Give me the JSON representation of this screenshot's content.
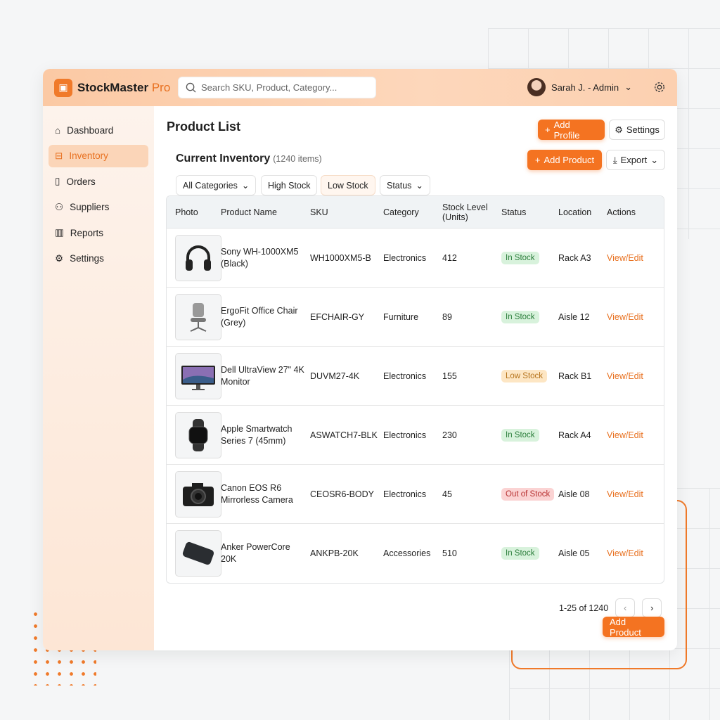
{
  "app": {
    "brand": "StockMaster",
    "brand_suffix": "Pro",
    "search_placeholder": "Search SKU, Product, Category...",
    "user": "Sarah J. - Admin"
  },
  "colors": {
    "accent": "#f47321",
    "in_stock": "#d8f2dc",
    "low_stock": "#fde6c4",
    "out_of_stock": "#fbd3d3"
  },
  "sidebar": {
    "items": [
      {
        "label": "Dashboard",
        "icon": "home-icon"
      },
      {
        "label": "Inventory",
        "icon": "briefcase-icon",
        "active": true
      },
      {
        "label": "Orders",
        "icon": "document-icon"
      },
      {
        "label": "Suppliers",
        "icon": "users-icon"
      },
      {
        "label": "Reports",
        "icon": "chart-icon"
      },
      {
        "label": "Settings",
        "icon": "gear-icon"
      }
    ]
  },
  "main": {
    "title": "Product List",
    "add_profile": "Add Profile",
    "settings": "Settings",
    "section_title": "Current Inventory",
    "item_count": "(1240 items)",
    "add_product": "Add Product",
    "export": "Export",
    "filters": [
      "All Categories",
      "High Stock",
      "Low Stock",
      "Status"
    ],
    "columns": [
      "Photo",
      "Product Name",
      "SKU",
      "Category",
      "Stock Level (Units)",
      "Status",
      "Location",
      "Actions"
    ],
    "rows": [
      {
        "name": "Sony WH-1000XM5 (Black)",
        "sku": "WH1000XM5-B",
        "category": "Electronics",
        "stock": "412",
        "status": "In Stock",
        "location": "Rack A3",
        "action": "View/Edit",
        "photo": "headphones"
      },
      {
        "name": "ErgoFit Office Chair (Grey)",
        "sku": "EFCHAIR-GY",
        "category": "Furniture",
        "stock": "89",
        "status": "In Stock",
        "location": "Aisle 12",
        "action": "View/Edit",
        "photo": "chair"
      },
      {
        "name": "Dell UltraView 27\" 4K Monitor",
        "sku": "DUVM27-4K",
        "category": "Electronics",
        "stock": "155",
        "status": "Low Stock",
        "location": "Rack B1",
        "action": "View/Edit",
        "photo": "monitor"
      },
      {
        "name": "Apple Smartwatch Series 7 (45mm)",
        "sku": "ASWATCH7-BLK",
        "category": "Electronics",
        "stock": "230",
        "status": "In Stock",
        "location": "Rack A4",
        "action": "View/Edit",
        "photo": "watch"
      },
      {
        "name": "Canon EOS R6 Mirrorless Camera",
        "sku": "CEOSR6-BODY",
        "category": "Electronics",
        "stock": "45",
        "status": "Out of Stock",
        "location": "Aisle 08",
        "action": "View/Edit",
        "photo": "camera"
      },
      {
        "name": "Anker PowerCore 20K",
        "sku": "ANKPB-20K",
        "category": "Accessories",
        "stock": "510",
        "status": "In Stock",
        "location": "Aisle 05",
        "action": "View/Edit",
        "photo": "powerbank"
      }
    ],
    "pagination": "1-25 of 1240",
    "add_product_bottom": "Add Product"
  }
}
